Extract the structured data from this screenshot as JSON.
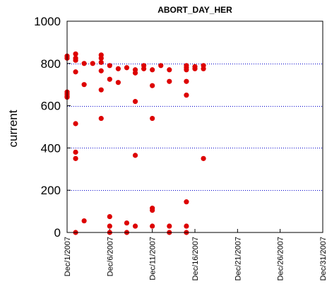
{
  "chart_data": {
    "type": "scatter",
    "title": "ABORT_DAY_HER",
    "xlabel": "",
    "ylabel": "current",
    "x_start": "Dec/1/2007",
    "x_end": "Dec/31/2007",
    "xlim": [
      "Dec/1/2007",
      "Dec/31/2007"
    ],
    "ylim": [
      0,
      1000
    ],
    "yticks": [
      0,
      200,
      400,
      600,
      800,
      1000
    ],
    "xtick_labels": [
      "Dec/1/2007",
      "Dec/6/2007",
      "Dec/11/2007",
      "Dec/16/2007",
      "Dec/21/2007",
      "Dec/26/2007",
      "Dec/31/2007"
    ],
    "xtick_dates": [
      "Dec/1/2007",
      "Dec/6/2007",
      "Dec/11/2007",
      "Dec/16/2007",
      "Dec/21/2007",
      "Dec/26/2007",
      "Dec/31/2007"
    ],
    "grid": "horizontal dotted",
    "marker_color": "#dd0000",
    "grid_color": "#0000cc",
    "points": [
      [
        "Dec/1/2007",
        835
      ],
      [
        "Dec/1/2007",
        825
      ],
      [
        "Dec/1/2007",
        665
      ],
      [
        "Dec/1/2007",
        655
      ],
      [
        "Dec/1/2007",
        645
      ],
      [
        "Dec/1/2007",
        640
      ],
      [
        "Dec/2/2007",
        845
      ],
      [
        "Dec/2/2007",
        825
      ],
      [
        "Dec/2/2007",
        815
      ],
      [
        "Dec/2/2007",
        760
      ],
      [
        "Dec/2/2007",
        515
      ],
      [
        "Dec/2/2007",
        380
      ],
      [
        "Dec/2/2007",
        350
      ],
      [
        "Dec/2/2007",
        0
      ],
      [
        "Dec/3/2007",
        800
      ],
      [
        "Dec/3/2007",
        700
      ],
      [
        "Dec/3/2007",
        55
      ],
      [
        "Dec/4/2007",
        800
      ],
      [
        "Dec/5/2007",
        840
      ],
      [
        "Dec/5/2007",
        825
      ],
      [
        "Dec/5/2007",
        805
      ],
      [
        "Dec/5/2007",
        765
      ],
      [
        "Dec/5/2007",
        675
      ],
      [
        "Dec/5/2007",
        540
      ],
      [
        "Dec/6/2007",
        790
      ],
      [
        "Dec/6/2007",
        725
      ],
      [
        "Dec/6/2007",
        75
      ],
      [
        "Dec/6/2007",
        30
      ],
      [
        "Dec/6/2007",
        0
      ],
      [
        "Dec/7/2007",
        775
      ],
      [
        "Dec/7/2007",
        710
      ],
      [
        "Dec/8/2007",
        780
      ],
      [
        "Dec/8/2007",
        45
      ],
      [
        "Dec/8/2007",
        0
      ],
      [
        "Dec/9/2007",
        770
      ],
      [
        "Dec/9/2007",
        755
      ],
      [
        "Dec/9/2007",
        620
      ],
      [
        "Dec/9/2007",
        365
      ],
      [
        "Dec/9/2007",
        30
      ],
      [
        "Dec/10/2007",
        790
      ],
      [
        "Dec/10/2007",
        775
      ],
      [
        "Dec/11/2007",
        770
      ],
      [
        "Dec/11/2007",
        695
      ],
      [
        "Dec/11/2007",
        540
      ],
      [
        "Dec/11/2007",
        115
      ],
      [
        "Dec/11/2007",
        105
      ],
      [
        "Dec/11/2007",
        30
      ],
      [
        "Dec/12/2007",
        790
      ],
      [
        "Dec/13/2007",
        770
      ],
      [
        "Dec/13/2007",
        715
      ],
      [
        "Dec/13/2007",
        30
      ],
      [
        "Dec/13/2007",
        0
      ],
      [
        "Dec/15/2007",
        790
      ],
      [
        "Dec/15/2007",
        780
      ],
      [
        "Dec/15/2007",
        770
      ],
      [
        "Dec/15/2007",
        715
      ],
      [
        "Dec/15/2007",
        650
      ],
      [
        "Dec/15/2007",
        145
      ],
      [
        "Dec/15/2007",
        30
      ],
      [
        "Dec/15/2007",
        0
      ],
      [
        "Dec/16/2007",
        785
      ],
      [
        "Dec/16/2007",
        775
      ],
      [
        "Dec/17/2007",
        790
      ],
      [
        "Dec/17/2007",
        775
      ],
      [
        "Dec/17/2007",
        350
      ]
    ]
  }
}
